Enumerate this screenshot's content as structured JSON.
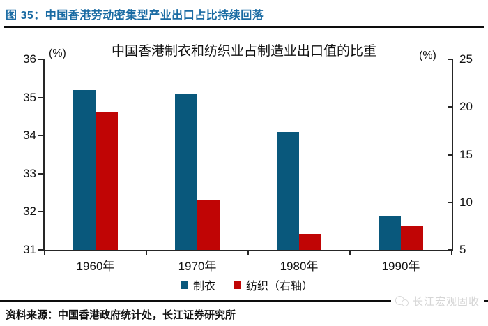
{
  "header": {
    "title": "图 35：中国香港劳动密集型产业出口占比持续回落"
  },
  "chart_data": {
    "type": "bar",
    "title": "中国香港制衣和纺织业占制造业出口值的比重",
    "categories": [
      "1960年",
      "1970年",
      "1980年",
      "1990年"
    ],
    "series": [
      {
        "name": "制衣",
        "axis": "left",
        "color": "#09587c",
        "values": [
          35.2,
          35.1,
          34.1,
          31.9
        ]
      },
      {
        "name": "纺织（右轴）",
        "axis": "right",
        "color": "#c00505",
        "values": [
          19.5,
          10.3,
          6.7,
          7.5
        ]
      }
    ],
    "left_axis": {
      "label": "(%)",
      "min": 31,
      "max": 36,
      "ticks": [
        36,
        35,
        34,
        33,
        32,
        31
      ]
    },
    "right_axis": {
      "label": "(%)",
      "min": 5,
      "max": 25,
      "ticks": [
        25,
        20,
        15,
        10,
        5
      ]
    },
    "legend_position": "bottom",
    "grid": false
  },
  "footer": {
    "source": "资料来源：中国香港政府统计处，长江证券研究所",
    "watermark": "长江宏观固收"
  }
}
